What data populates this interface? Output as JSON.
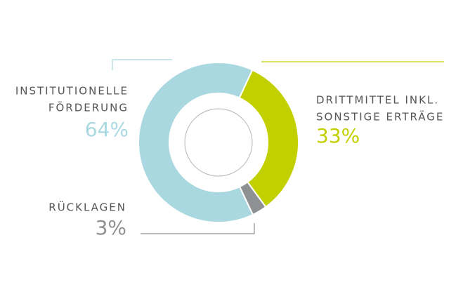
{
  "chart_data": {
    "type": "donut",
    "categories": [
      [
        "INSTITUTIONELLE",
        "FÖRDERUNG"
      ],
      [
        "DRITTMITTEL INKL.",
        "SONSTIGE ERTRÄGE"
      ],
      [
        "RÜCKLAGEN"
      ]
    ],
    "values": [
      64,
      33,
      3
    ],
    "value_labels": [
      "64%",
      "33%",
      "3%"
    ],
    "colors": [
      "#a9d8e0",
      "#c3d000",
      "#8f9092"
    ]
  }
}
